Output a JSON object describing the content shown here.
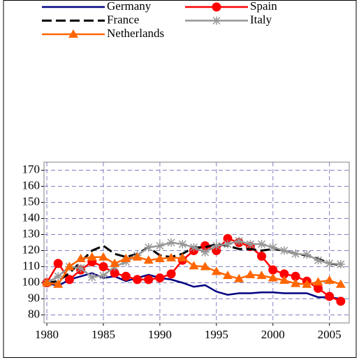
{
  "chart_data": {
    "type": "line",
    "x": [
      1980,
      1981,
      1982,
      1983,
      1984,
      1985,
      1986,
      1987,
      1988,
      1989,
      1990,
      1991,
      1992,
      1993,
      1994,
      1995,
      1996,
      1997,
      1998,
      1999,
      2000,
      2001,
      2002,
      2003,
      2004,
      2005,
      2006
    ],
    "series": [
      {
        "name": "Germany",
        "color": "#000080",
        "style": "solid",
        "marker": "none",
        "values": [
          100,
          98,
          102,
          104,
          106,
          103,
          104,
          101,
          103,
          105,
          103,
          102,
          100,
          97.5,
          98.5,
          94.5,
          92.5,
          93.5,
          93.5,
          94,
          94,
          93.5,
          93.5,
          93.5,
          91,
          91,
          90
        ]
      },
      {
        "name": "Spain",
        "color": "#ff0000",
        "style": "solid",
        "marker": "circle",
        "values": [
          100,
          112,
          102,
          108,
          113,
          110,
          106,
          104,
          102,
          102,
          103,
          105.5,
          114,
          120,
          123,
          120,
          127.5,
          125,
          122.5,
          116.5,
          108,
          105.5,
          104,
          101,
          96.5,
          91.5,
          88.5
        ]
      },
      {
        "name": "France",
        "color": "#000000",
        "style": "dashed",
        "marker": "none",
        "values": [
          100,
          101,
          106,
          113,
          120,
          123,
          118,
          116,
          118,
          122,
          117,
          116,
          118,
          122,
          122,
          124,
          123,
          121,
          121,
          120,
          121,
          120,
          118,
          117,
          115,
          112,
          111
        ]
      },
      {
        "name": "Italy",
        "color": "#969696",
        "style": "solid",
        "marker": "star",
        "values": [
          100,
          104,
          110,
          109,
          103.5,
          104.5,
          110,
          113,
          117,
          122,
          123,
          125,
          124,
          122,
          119,
          123,
          124,
          126,
          124,
          124,
          122,
          120,
          118,
          117.5,
          114,
          112,
          111.5
        ]
      },
      {
        "name": "Netherlands",
        "color": "#ff6600",
        "style": "solid",
        "marker": "triangle",
        "values": [
          100,
          99,
          110,
          115,
          116,
          116,
          112,
          115,
          116,
          114,
          115,
          115.5,
          115.5,
          110.5,
          110,
          107,
          104.5,
          102.5,
          105,
          104.5,
          103,
          101.5,
          99.5,
          99,
          100.5,
          101.5,
          99
        ]
      }
    ],
    "xlim": [
      1979.75,
      2006.75
    ],
    "xticks": [
      1980,
      1985,
      1990,
      1995,
      2000,
      2005
    ],
    "ylim": [
      75,
      175
    ],
    "yticks": [
      80,
      90,
      100,
      110,
      120,
      130,
      140,
      150,
      160,
      170
    ],
    "grid": true,
    "legend": "top"
  }
}
